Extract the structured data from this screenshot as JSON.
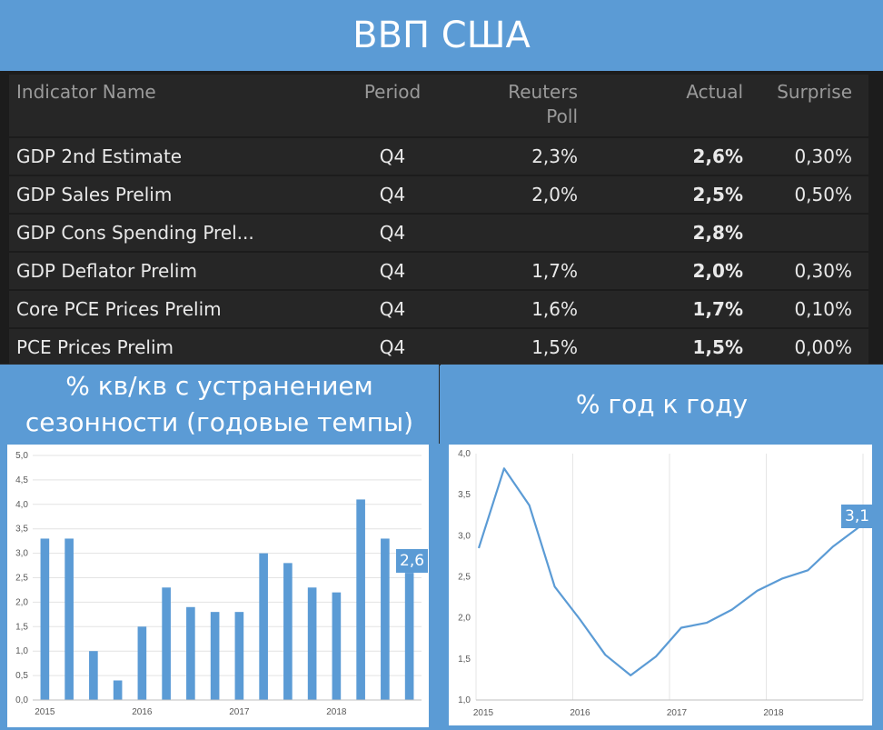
{
  "page": {
    "title": "ВВП США"
  },
  "table": {
    "headers": {
      "indicator": "Indicator Name",
      "period": "Period",
      "poll_line1": "Reuters",
      "poll_line2": "Poll",
      "actual": "Actual",
      "surprise": "Surprise"
    },
    "rows": [
      {
        "name": "GDP 2nd Estimate",
        "period": "Q4",
        "poll": "2,3%",
        "actual": "2,6%",
        "surprise": "0,30%"
      },
      {
        "name": "GDP Sales Prelim",
        "period": "Q4",
        "poll": "2,0%",
        "actual": "2,5%",
        "surprise": "0,50%"
      },
      {
        "name": "GDP Cons Spending Prel...",
        "period": "Q4",
        "poll": "",
        "actual": "2,8%",
        "surprise": ""
      },
      {
        "name": "GDP Deflator Prelim",
        "period": "Q4",
        "poll": "1,7%",
        "actual": "2,0%",
        "surprise": "0,30%"
      },
      {
        "name": "Core PCE Prices Prelim",
        "period": "Q4",
        "poll": "1,6%",
        "actual": "1,7%",
        "surprise": "0,10%"
      },
      {
        "name": "PCE Prices Prelim",
        "period": "Q4",
        "poll": "1,5%",
        "actual": "1,5%",
        "surprise": "0,00%"
      }
    ]
  },
  "colors": {
    "band": "#5b9bd5",
    "table_bg": "#1c1c1c",
    "cell_bg": "#262626",
    "poll_value": "#1e8fe6",
    "actual_value": "#f7931e",
    "series": "#5b9bd5"
  },
  "chart_data": [
    {
      "type": "bar",
      "title": "% кв/кв с устранением сезонности (годовые темпы)",
      "categories": [
        "2015",
        "",
        "",
        "",
        "2016",
        "",
        "",
        "",
        "2017",
        "",
        "",
        "",
        "2018",
        "",
        "",
        ""
      ],
      "values": [
        3.3,
        3.3,
        1.0,
        0.4,
        1.5,
        2.3,
        1.9,
        1.8,
        1.8,
        3.0,
        2.8,
        2.3,
        2.2,
        4.1,
        3.3,
        2.6
      ],
      "ylim": [
        0,
        5
      ],
      "yticks": [
        "0,0",
        "0,5",
        "1,0",
        "1,5",
        "2,0",
        "2,5",
        "3,0",
        "3,5",
        "4,0",
        "4,5",
        "5,0"
      ],
      "xticks": [
        "2015",
        "2016",
        "2017",
        "2018"
      ],
      "callout": "2,6",
      "grid": "horizontal"
    },
    {
      "type": "line",
      "title": "% год к году",
      "x": [
        "2015Q1",
        "2015Q2",
        "2015Q3",
        "2015Q4",
        "2016Q1",
        "2016Q2",
        "2016Q3",
        "2016Q4",
        "2017Q1",
        "2017Q2",
        "2017Q3",
        "2017Q4",
        "2018Q1",
        "2018Q2",
        "2018Q3",
        "2018Q4"
      ],
      "values": [
        2.85,
        3.82,
        3.37,
        2.38,
        1.98,
        1.55,
        1.3,
        1.53,
        1.88,
        1.94,
        2.1,
        2.33,
        2.48,
        2.58,
        2.87,
        3.1
      ],
      "ylim": [
        1.0,
        4.0
      ],
      "yticks": [
        "1,0",
        "1,5",
        "2,0",
        "2,5",
        "3,0",
        "3,5",
        "4,0"
      ],
      "xticks": [
        "2015",
        "2016",
        "2017",
        "2018"
      ],
      "callout": "3,1",
      "grid": "vertical"
    }
  ]
}
